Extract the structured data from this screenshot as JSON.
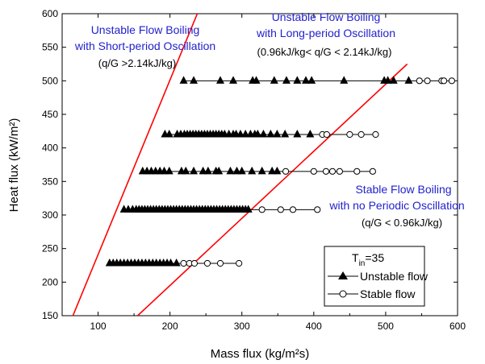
{
  "chart_data": {
    "type": "scatter",
    "xlabel": "Mass flux (kg/m²s)",
    "ylabel": "Heat flux (kW/m²)",
    "xlim": [
      50,
      600
    ],
    "ylim": [
      150,
      600
    ],
    "xticks": [
      100,
      200,
      300,
      400,
      500,
      600
    ],
    "yticks": [
      150,
      200,
      250,
      300,
      350,
      400,
      450,
      500,
      550,
      600
    ],
    "boundary_lines": [
      {
        "color": "#ff0000",
        "points": [
          [
            65,
            150
          ],
          [
            238,
            600
          ]
        ]
      },
      {
        "color": "#ff0000",
        "points": [
          [
            155,
            150
          ],
          [
            530,
            525
          ]
        ]
      }
    ],
    "annotations": [
      {
        "lines": [
          "Unstable Flow Boiling",
          "with Short-period Oscillation"
        ],
        "condition": "(q/G >2.14kJ/kg)"
      },
      {
        "lines": [
          "Unstable Flow Boiling",
          "with Long-period Oscillation"
        ],
        "condition": "(0.96kJ/kg< q/G < 2.14kJ/kg)"
      },
      {
        "lines": [
          "Stable Flow Boiling",
          "with no Periodic Oscillation"
        ],
        "condition": "(q/G < 0.96kJ/kg)"
      }
    ],
    "legend": {
      "position": "bottom-right",
      "title_main": "T",
      "title_sub": "in",
      "title_rest": "=35",
      "entries": [
        "Unstable flow",
        "Stable flow"
      ]
    },
    "series": [
      {
        "name": "Unstable flow",
        "marker": "filled-triangle",
        "rows": [
          {
            "y": 500,
            "x": [
              219,
              233,
              270,
              288,
              315,
              320,
              345,
              362,
              377,
              389,
              397,
              442,
              498,
              503,
              511,
              532
            ]
          },
          {
            "y": 420,
            "x": [
              193,
              199,
              210,
              215,
              220,
              224,
              228,
              232,
              236,
              240,
              244,
              248,
              252,
              256,
              260,
              264,
              268,
              272,
              276,
              282,
              288,
              292,
              298,
              305,
              312,
              318,
              322,
              330,
              340,
              349,
              360,
              377,
              395
            ]
          },
          {
            "y": 365,
            "x": [
              162,
              168,
              174,
              180,
              186,
              192,
              199,
              216,
              222,
              233,
              246,
              253,
              264,
              268,
              284,
              293,
              300,
              314,
              328,
              342,
              349
            ]
          },
          {
            "y": 308,
            "x": [
              136,
              142,
              148,
              153,
              157,
              161,
              165,
              169,
              173,
              177,
              181,
              185,
              189,
              193,
              197,
              201,
              205,
              209,
              213,
              217,
              221,
              225,
              229,
              233,
              237,
              241,
              245,
              249,
              253,
              257,
              261,
              265,
              269,
              273,
              277,
              281,
              285,
              289,
              293,
              297,
              301,
              305,
              309
            ]
          },
          {
            "y": 228,
            "x": [
              116,
              121,
              126,
              131,
              136,
              141,
              146,
              151,
              156,
              161,
              166,
              171,
              176,
              181,
              186,
              191,
              196,
              201,
              209
            ]
          }
        ]
      },
      {
        "name": "Stable flow",
        "marker": "open-circle",
        "rows": [
          {
            "y": 500,
            "x": [
              547,
              558,
              578,
              581,
              592
            ]
          },
          {
            "y": 420,
            "x": [
              412,
              418,
              450,
              466,
              486
            ]
          },
          {
            "y": 365,
            "x": [
              361,
              400,
              417,
              426,
              436,
              460,
              482
            ]
          },
          {
            "y": 308,
            "x": [
              328,
              354,
              371,
              405
            ]
          },
          {
            "y": 228,
            "x": [
              219,
              227,
              234,
              252,
              270,
              296
            ]
          }
        ]
      }
    ]
  }
}
